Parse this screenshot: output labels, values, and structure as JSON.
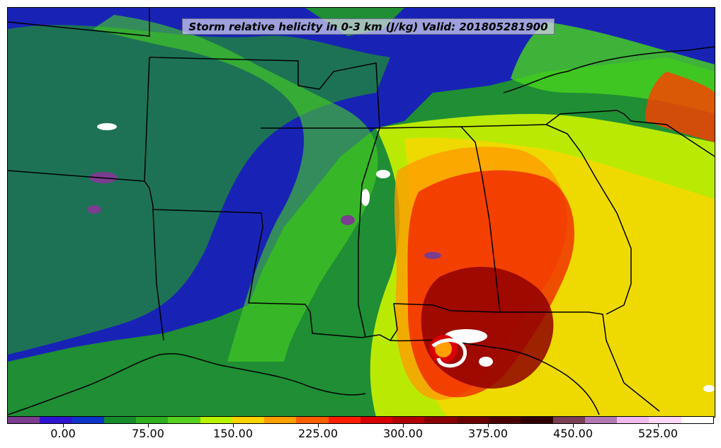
{
  "title": "Storm relative helicity in 0-3 km (J/kg) Valid: 201805281900",
  "colorbar": {
    "ticks": [
      "0.00",
      "75.00",
      "150.00",
      "225.00",
      "300.00",
      "375.00",
      "450.00",
      "525.00"
    ],
    "colors": [
      "#7a3d8f",
      "#2d14d3",
      "#0c35c9",
      "#168b2c",
      "#2fb01f",
      "#57d11f",
      "#b8f300",
      "#ffd400",
      "#ff9f00",
      "#ff5e00",
      "#ff1f00",
      "#d90000",
      "#b00000",
      "#8b0000",
      "#6a0000",
      "#4a0000",
      "#2f0000",
      "#7a3f55",
      "#b278b3",
      "#f0b9ef",
      "#ffd8fb",
      "#ffffff"
    ]
  },
  "map": {
    "background_colors": {
      "land_base": "#1f8e34",
      "blue_zone": "#1814c8",
      "green_zone": "#4bd01d",
      "lime_zone": "#c8f200",
      "yellow_zone": "#ffd400",
      "orange_zone": "#ff9a00",
      "red_zone": "#f01800",
      "darkred_zone": "#8f0000",
      "white_zone": "#ffffff",
      "purple_zone": "#7a3d8f"
    }
  }
}
